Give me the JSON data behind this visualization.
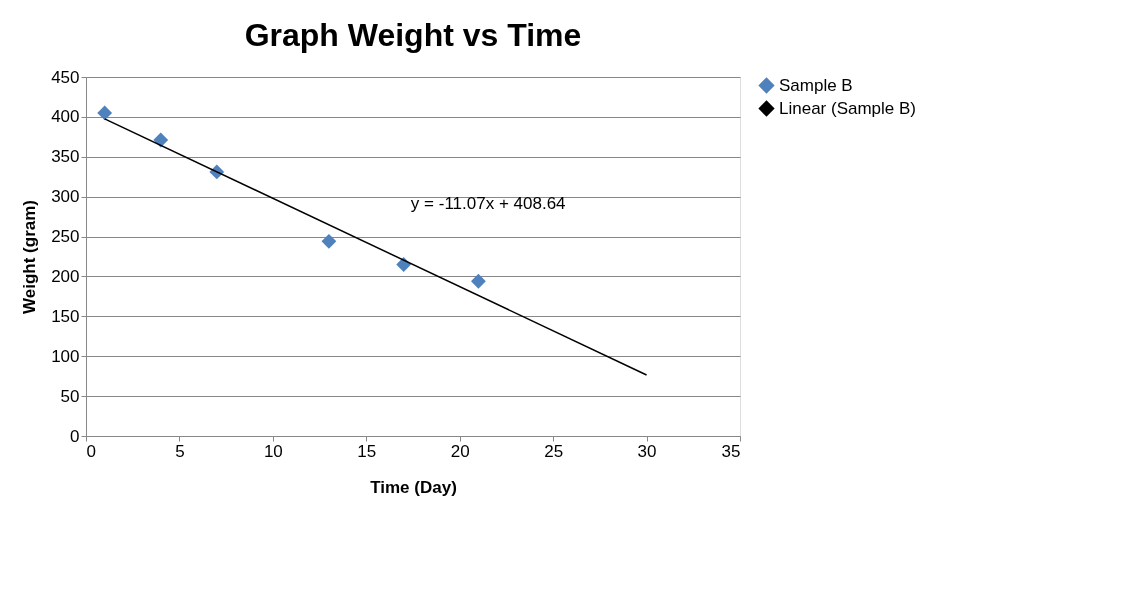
{
  "chart_data": {
    "type": "scatter",
    "title": "Graph Weight vs Time",
    "xlabel": "Time (Day)",
    "ylabel": "Weight (gram)",
    "series": [
      {
        "name": "Sample B",
        "color": "#4f81bd",
        "marker": "diamond",
        "x": [
          1,
          4,
          7,
          13,
          17,
          21
        ],
        "values": [
          405,
          371,
          331,
          244,
          215,
          194
        ]
      },
      {
        "name": "Linear (Sample B)",
        "type": "line",
        "color": "#000000",
        "line_style": "solid",
        "x": [
          1,
          30
        ],
        "values": [
          397.6,
          76.5
        ]
      }
    ],
    "annotations": [
      "y = -11.07x + 408.64"
    ],
    "xlim": [
      0,
      35
    ],
    "xticks": [
      0,
      5,
      10,
      15,
      20,
      25,
      30,
      35
    ],
    "ylim": [
      0,
      450
    ],
    "yticks": [
      0,
      50,
      100,
      150,
      200,
      250,
      300,
      350,
      400,
      450
    ],
    "grid": "y",
    "legend": "right"
  }
}
